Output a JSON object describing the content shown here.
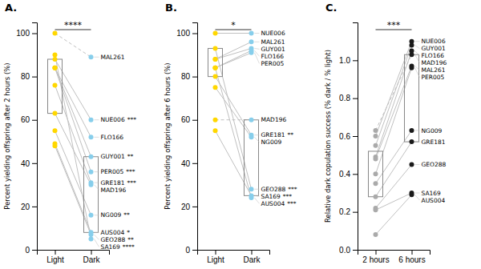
{
  "chart_data": [
    {
      "type": "slope",
      "title": "A.",
      "ylabel": "Percent yielding offspring after 2 hours (%)",
      "categories": [
        "Light",
        "Dark"
      ],
      "ylim": [
        0,
        105
      ],
      "yticks": [
        0,
        20,
        40,
        60,
        80,
        100
      ],
      "colors": [
        "#FFD700",
        "#87CEEB"
      ],
      "color": "#C0C0C0",
      "significance": "****",
      "boxes": [
        [
          63,
          88
        ],
        [
          8,
          43
        ]
      ],
      "series": [
        {
          "name": "MAL261",
          "line_style": "dashed",
          "values": [
            100,
            89
          ]
        },
        {
          "name": "NUE006",
          "significance": "***",
          "values": [
            88,
            60
          ]
        },
        {
          "name": "FLO166",
          "values": [
            84,
            52
          ]
        },
        {
          "name": "GUY001",
          "significance": "**",
          "values": [
            84,
            43
          ]
        },
        {
          "name": "PER005",
          "significance": "***",
          "values": [
            84,
            36
          ]
        },
        {
          "name": "GRE181",
          "significance": "***",
          "values": [
            76,
            31
          ]
        },
        {
          "name": "MAD196",
          "values": [
            63,
            30
          ]
        },
        {
          "name": "NG009",
          "significance": "**",
          "values": [
            55,
            16
          ]
        },
        {
          "name": "AUS004",
          "significance": "*",
          "values": [
            49,
            8
          ]
        },
        {
          "name": "GEO288",
          "significance": "**",
          "values": [
            48,
            7
          ]
        },
        {
          "name": "SA169",
          "significance": "****",
          "values": [
            90,
            5
          ]
        }
      ]
    },
    {
      "type": "slope",
      "title": "B.",
      "ylabel": "Percent yielding offspring after 6 hours (%)",
      "categories": [
        "Light",
        "Dark"
      ],
      "ylim": [
        0,
        105
      ],
      "yticks": [
        0,
        20,
        40,
        60,
        80,
        100
      ],
      "colors": [
        "#FFD700",
        "#87CEEB"
      ],
      "color": "#C0C0C0",
      "significance": "*",
      "boxes": [
        [
          80,
          93
        ],
        [
          25,
          60
        ]
      ],
      "series": [
        {
          "name": "NUE006",
          "values": [
            100,
            100
          ]
        },
        {
          "name": "MAL261",
          "values": [
            88,
            96
          ]
        },
        {
          "name": "GUY001",
          "values": [
            88,
            93
          ]
        },
        {
          "name": "FLO166",
          "values": [
            84,
            92
          ]
        },
        {
          "name": "PER005",
          "values": [
            84,
            91
          ]
        },
        {
          "name": "MAD196",
          "line_style": "dashed",
          "values": [
            60,
            60
          ]
        },
        {
          "name": "GRE181",
          "significance": "**",
          "values": [
            80,
            53
          ]
        },
        {
          "name": "NG009",
          "values": [
            75,
            52
          ]
        },
        {
          "name": "GEO288",
          "significance": "***",
          "values": [
            93,
            28
          ]
        },
        {
          "name": "SA169",
          "significance": "***",
          "values": [
            55,
            25
          ]
        },
        {
          "name": "AUS004",
          "significance": "***",
          "values": [
            84,
            24
          ]
        }
      ]
    },
    {
      "type": "slope",
      "title": "C.",
      "ylabel": "Relative dark copulation success (% dark / % light)",
      "categories": [
        "2 hours",
        "6 hours"
      ],
      "ylim": [
        0,
        1.2
      ],
      "yticks": [
        {
          "value": 0,
          "label": "0.0"
        },
        0.2,
        0.4,
        0.6,
        0.8,
        {
          "value": 1.0,
          "label": "1.0"
        }
      ],
      "colors": [
        "#AAAAAA",
        "#1A1A1A"
      ],
      "color": "#C0C0C0",
      "significance": "***",
      "boxes": [
        [
          0.28,
          0.52
        ],
        [
          0.57,
          1.03
        ]
      ],
      "series": [
        {
          "name": "NUE006",
          "values": [
            0.6,
            1.1
          ]
        },
        {
          "name": "GUY001",
          "values": [
            0.55,
            1.08
          ]
        },
        {
          "name": "FLO166",
          "values": [
            0.49,
            1.05
          ]
        },
        {
          "name": "MAD196",
          "line_style": "dashed",
          "values": [
            0.63,
            1.03
          ]
        },
        {
          "name": "MAL261",
          "values": [
            0.48,
            0.97
          ]
        },
        {
          "name": "PER005",
          "values": [
            0.4,
            0.96
          ]
        },
        {
          "name": "NG009",
          "values": [
            0.35,
            0.63
          ]
        },
        {
          "name": "GRE181",
          "values": [
            0.28,
            0.57
          ]
        },
        {
          "name": "GEO288",
          "values": [
            0.22,
            0.45
          ]
        },
        {
          "name": "SA169",
          "values": [
            0.21,
            0.3
          ]
        },
        {
          "name": "AUS004",
          "values": [
            0.08,
            0.29
          ]
        }
      ]
    }
  ]
}
